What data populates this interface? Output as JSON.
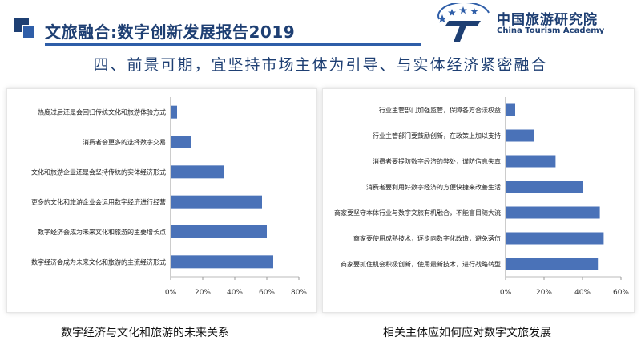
{
  "header": {
    "title": "文旅融合:数字创新发展报告2019",
    "subtitle": "四、前景可期，宜坚持市场主体为引导、与实体经济紧密融合"
  },
  "logo": {
    "name_cn": "中国旅游研究院",
    "name_en": "China Tourism Academy",
    "mark_letter": "T"
  },
  "colors": {
    "accent": "#1e3f73",
    "bar": "#4a72b8"
  },
  "chart_data": [
    {
      "type": "bar",
      "orientation": "horizontal",
      "caption": "数字经济与文化和旅游的未来关系",
      "categories": [
        "热度过后还是会回归传统文化和旅游体验方式",
        "消费者会更多的选择数字交易",
        "文化和旅游企业还是会坚持传统的实体经济形式",
        "更多的文化和旅游企业会运用数字经济进行经营",
        "数字经济会成为未来文化和旅游的主要增长点",
        "数字经济会成为未来文化和旅游的主流经济形式"
      ],
      "values": [
        4,
        13,
        33,
        57,
        60,
        64
      ],
      "xlim": [
        0,
        80
      ],
      "ticks": [
        "0%",
        "20%",
        "40%",
        "60%",
        "80%"
      ],
      "grid": false
    },
    {
      "type": "bar",
      "orientation": "horizontal",
      "caption": "相关主体应如何应对数字文旅发展",
      "categories": [
        "行业主管部门加强监管，保障各方合法权益",
        "行业主管部门要鼓励创新，在政策上加以支持",
        "消费者要提防数字经济的弊处，谨防信息失真",
        "消费者要利用好数字经济的方便快捷来改善生活",
        "商家要坚守本体行业与数字文旅有机融合，不能盲目随大流",
        "商家要使用成熟技术，逐步向数字化改造，避免落伍",
        "商家要抓住机会积极创新，使用最新技术，进行战略转型"
      ],
      "values": [
        5,
        15,
        26,
        40,
        49,
        51,
        48
      ],
      "xlim": [
        0,
        60
      ],
      "ticks": [
        "0%",
        "20%",
        "40%",
        "60%"
      ],
      "grid": false
    }
  ]
}
